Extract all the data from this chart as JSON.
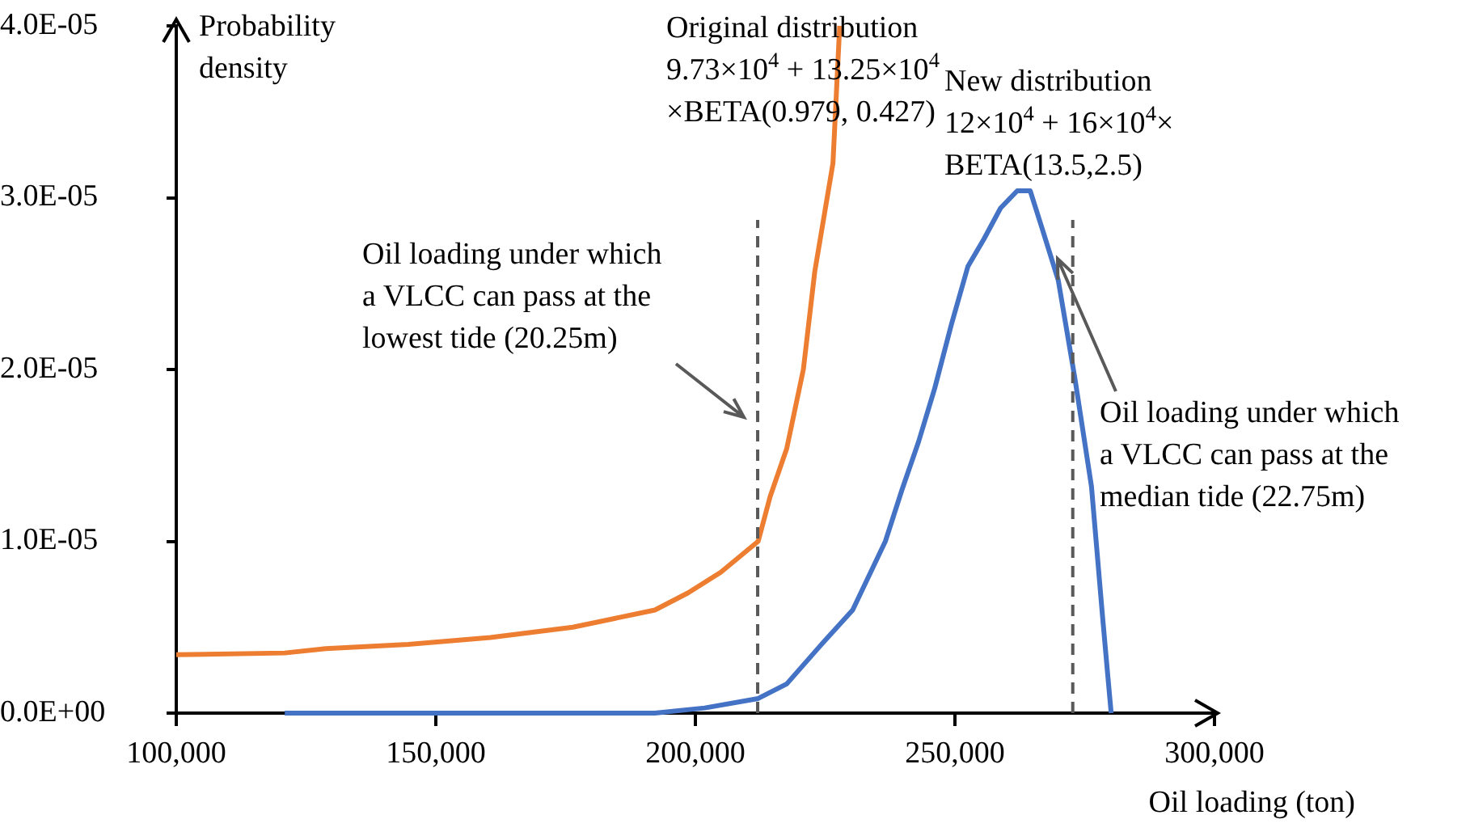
{
  "chart_data": {
    "type": "line",
    "xlabel": "Oil loading (ton)",
    "ylabel": "Probability density",
    "xlim": [
      100000,
      300000
    ],
    "xticks": [
      {
        "value": 100000,
        "label": "100,000"
      },
      {
        "value": 150000,
        "label": "150,000"
      },
      {
        "value": 200000,
        "label": "200,000"
      },
      {
        "value": 250000,
        "label": "250,000"
      },
      {
        "value": 300000,
        "label": "300,000"
      }
    ],
    "ylim": [
      0,
      4e-05
    ],
    "yticks": [
      {
        "value": 0,
        "label": "0.0E+00"
      },
      {
        "value": 1e-05,
        "label": "1.0E-05"
      },
      {
        "value": 2e-05,
        "label": "2.0E-05"
      },
      {
        "value": 3e-05,
        "label": "3.0E-05"
      },
      {
        "value": 4e-05,
        "label": "4.0E-05"
      }
    ],
    "grid": false,
    "legend": false,
    "marker": "none",
    "line_style": "solid",
    "series": [
      {
        "name": "Original distribution\n9.73×10$^{4}$ + 13.25×10$^{4}$\n×BETA(0.979, 0.427)",
        "color": "#ed7d31",
        "x": [
          100000,
          120900,
          128800,
          144700,
          160500,
          176400,
          192200,
          198600,
          204900,
          212100,
          214400,
          217600,
          220800,
          223000,
          226500,
          227800
        ],
        "values": [
          3.4e-06,
          3.5e-06,
          3.75e-06,
          4e-06,
          4.4e-06,
          5e-06,
          6e-06,
          7e-06,
          8.2e-06,
          1e-05,
          1.26e-05,
          1.54e-05,
          2e-05,
          2.57e-05,
          3.2e-05,
          4e-05
        ]
      },
      {
        "name": "New distribution\n12×10$^{4}$ + 16×10$^{4}$×\nBETA(13.5,2.5)",
        "color": "#4472c4",
        "x": [
          120900,
          192200,
          201800,
          212100,
          217600,
          224000,
          230300,
          236600,
          239800,
          243000,
          246100,
          249300,
          252500,
          255600,
          258800,
          262000,
          264500,
          266700,
          269900,
          273100,
          276300,
          278500,
          279500,
          280100
        ],
        "values": [
          0,
          0,
          3e-07,
          8.5e-07,
          1.7e-06,
          3.9e-06,
          6e-06,
          1e-05,
          1.3e-05,
          1.58e-05,
          1.89e-05,
          2.26e-05,
          2.6e-05,
          2.76e-05,
          2.94e-05,
          3.04e-05,
          3.04e-05,
          2.83e-05,
          2.52e-05,
          1.95e-05,
          1.32e-05,
          5.4e-06,
          2e-06,
          0
        ]
      }
    ],
    "ref_lines": [
      {
        "axis": "x",
        "value": 212000,
        "label": "Oil loading under which\na VLCC can pass at the\nlowest tide (20.25m)",
        "color": "#595959",
        "line_style": "dashed"
      },
      {
        "axis": "x",
        "value": 272700,
        "label": "Oil loading under which\na VLCC can pass at the\nmedian tide (22.75m)",
        "color": "#595959",
        "line_style": "dashed"
      }
    ]
  }
}
